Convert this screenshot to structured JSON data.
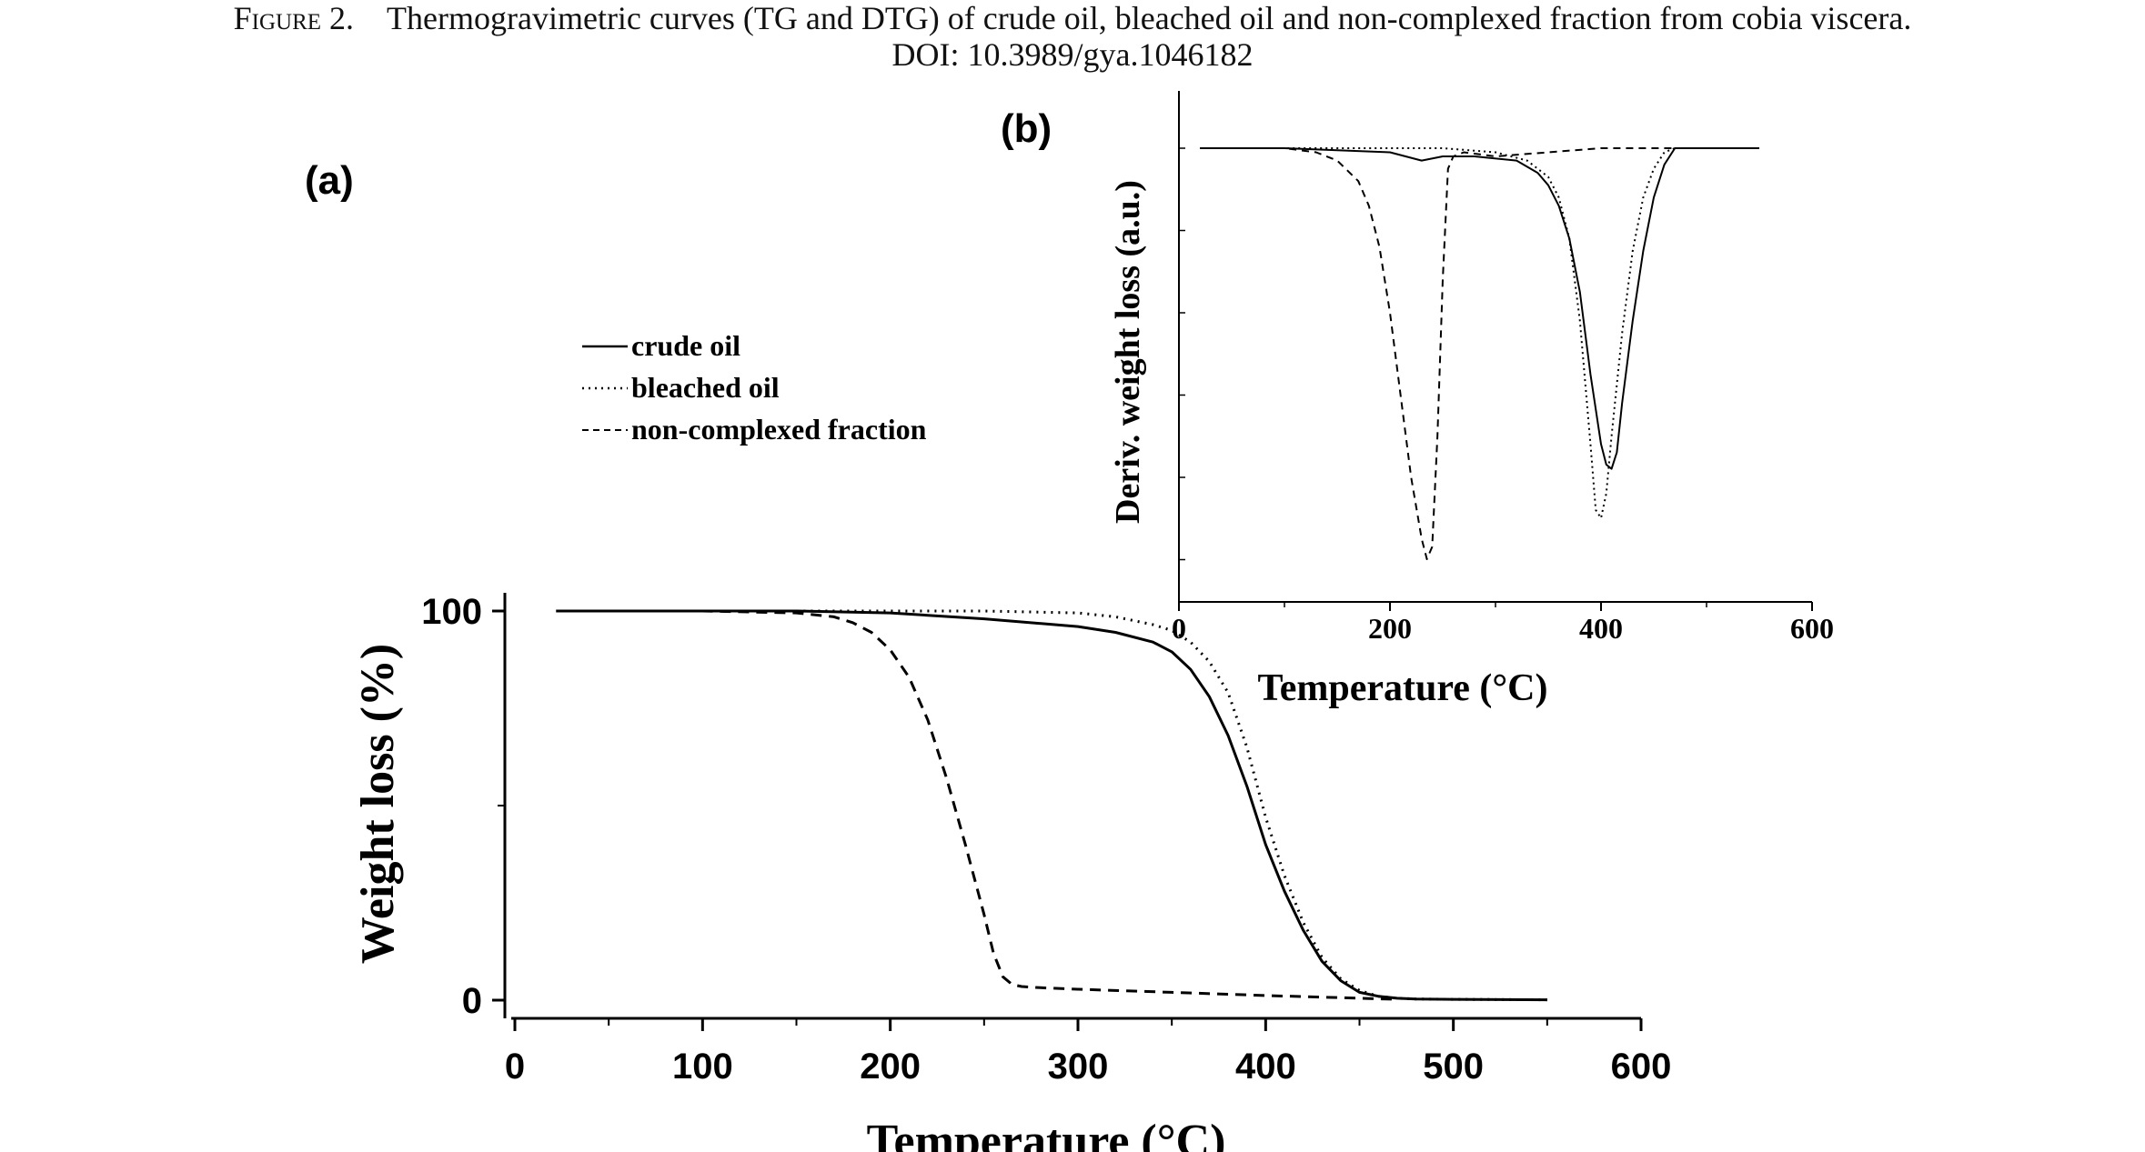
{
  "caption": {
    "figure_label": "Figure 2.",
    "text": "Thermogravimetric curves (TG and DTG) of crude oil, bleached oil and non-complexed fraction from cobia viscera.",
    "doi": "DOI: 10.3989/gya.1046182"
  },
  "panels": {
    "a_label": "(a)",
    "b_label": "(b)"
  },
  "legend": [
    {
      "label": "crude oil",
      "style": "solid"
    },
    {
      "label": "bleached oil",
      "style": "dotted"
    },
    {
      "label": "non-complexed fraction",
      "style": "dashed"
    }
  ],
  "chart_data": [
    {
      "panel": "(a)",
      "type": "line",
      "title": "",
      "xlabel": "Temperature (°C)",
      "ylabel": "Weight loss (%)",
      "xlim": [
        0,
        600
      ],
      "ylim": [
        0,
        100
      ],
      "xticks": [
        "0",
        "100",
        "200",
        "300",
        "400",
        "500",
        "600"
      ],
      "yticks": [
        "0",
        "100"
      ],
      "grid": false,
      "series": [
        {
          "name": "crude oil",
          "style": "solid",
          "x": [
            22,
            100,
            150,
            200,
            250,
            300,
            320,
            340,
            350,
            360,
            370,
            380,
            390,
            400,
            410,
            420,
            430,
            440,
            450,
            460,
            470,
            480,
            500,
            550
          ],
          "y": [
            100,
            100,
            100,
            99.5,
            98,
            96,
            94.5,
            92,
            89.5,
            85,
            78,
            68,
            55,
            40,
            28,
            18,
            10,
            5,
            2,
            1,
            0.5,
            0.3,
            0.2,
            0.1
          ]
        },
        {
          "name": "bleached oil",
          "style": "dotted",
          "x": [
            22,
            100,
            150,
            200,
            250,
            300,
            320,
            340,
            350,
            360,
            370,
            380,
            390,
            400,
            410,
            420,
            430,
            440,
            450,
            460,
            470,
            480,
            500,
            550
          ],
          "y": [
            100,
            100,
            100,
            100,
            100,
            99.5,
            98.5,
            96.5,
            95,
            92,
            87,
            79,
            65,
            47,
            32,
            20,
            11,
            5.5,
            2.5,
            1,
            0.5,
            0.3,
            0.2,
            0.1
          ]
        },
        {
          "name": "non-complexed fraction",
          "style": "dashed",
          "x": [
            22,
            100,
            150,
            170,
            180,
            190,
            200,
            210,
            220,
            230,
            240,
            250,
            255,
            260,
            265,
            270,
            280,
            300,
            350,
            400,
            450,
            470
          ],
          "y": [
            100,
            100,
            99.5,
            98.5,
            97,
            94.5,
            90,
            83,
            72,
            57,
            40,
            22,
            12,
            6,
            4,
            3.5,
            3.2,
            2.8,
            2,
            1.2,
            0.5,
            0.2
          ]
        }
      ]
    },
    {
      "panel": "(b)",
      "type": "line",
      "title": "",
      "xlabel": "Temperature (°C)",
      "ylabel": "Deriv. weight loss (a.u.)",
      "xlim": [
        0,
        600
      ],
      "ylim": [
        -1.05,
        0.05
      ],
      "xticks": [
        "0",
        "200",
        "400",
        "600"
      ],
      "grid": false,
      "series": [
        {
          "name": "crude oil",
          "style": "solid",
          "x": [
            20,
            100,
            200,
            230,
            250,
            280,
            320,
            340,
            350,
            360,
            370,
            380,
            390,
            400,
            405,
            410,
            415,
            420,
            430,
            440,
            450,
            460,
            470,
            480,
            500,
            550
          ],
          "y": [
            0,
            0,
            -0.01,
            -0.03,
            -0.02,
            -0.02,
            -0.03,
            -0.06,
            -0.09,
            -0.14,
            -0.22,
            -0.35,
            -0.55,
            -0.72,
            -0.77,
            -0.78,
            -0.74,
            -0.62,
            -0.42,
            -0.25,
            -0.12,
            -0.04,
            0,
            0,
            0,
            0
          ]
        },
        {
          "name": "bleached oil",
          "style": "dotted",
          "x": [
            20,
            100,
            200,
            250,
            300,
            330,
            350,
            360,
            370,
            380,
            390,
            395,
            400,
            405,
            410,
            420,
            430,
            440,
            450,
            460,
            470,
            480,
            500,
            550
          ],
          "y": [
            0,
            0,
            0,
            0,
            -0.01,
            -0.03,
            -0.07,
            -0.12,
            -0.22,
            -0.42,
            -0.72,
            -0.88,
            -0.9,
            -0.84,
            -0.7,
            -0.45,
            -0.25,
            -0.12,
            -0.05,
            -0.01,
            0,
            0,
            0,
            0
          ]
        },
        {
          "name": "non-complexed fraction",
          "style": "dashed",
          "x": [
            20,
            100,
            130,
            150,
            170,
            180,
            190,
            200,
            210,
            220,
            230,
            235,
            240,
            245,
            250,
            255,
            260,
            270,
            300,
            350,
            400,
            450,
            500
          ],
          "y": [
            0,
            0,
            -0.01,
            -0.03,
            -0.08,
            -0.14,
            -0.24,
            -0.4,
            -0.6,
            -0.8,
            -0.95,
            -1.0,
            -0.97,
            -0.7,
            -0.32,
            -0.05,
            -0.02,
            -0.01,
            -0.02,
            -0.01,
            0,
            0,
            0
          ]
        }
      ]
    }
  ]
}
